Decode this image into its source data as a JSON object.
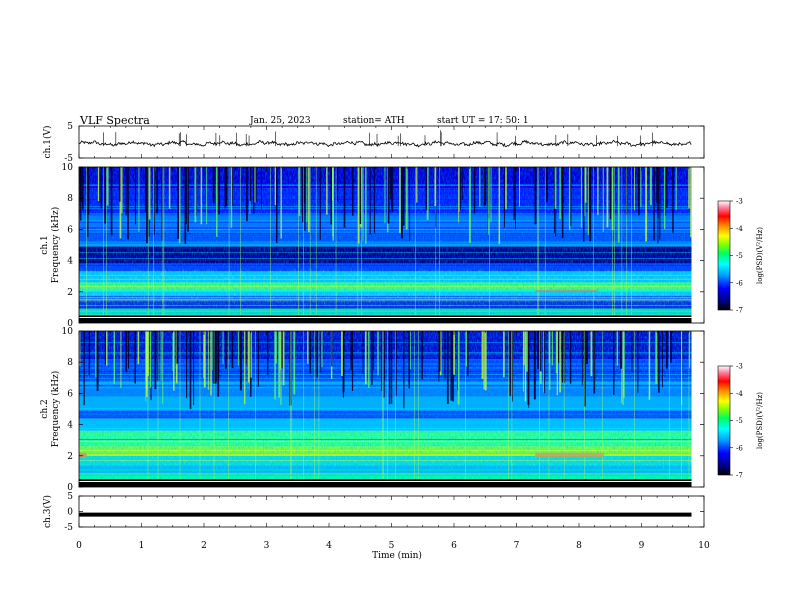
{
  "header": {
    "title": "VLF  Spectra",
    "date": "Jan. 25, 2023",
    "station": "station= ATH",
    "start": "start  UT  =    17: 50: 1"
  },
  "colorbar": {
    "label": "log(PSD)(V²/Hz)",
    "ticks": [
      "-3",
      "-4",
      "-5",
      "-6",
      "-7"
    ]
  },
  "chart_data": [
    {
      "type": "line",
      "ylabel": "ch.1(V)",
      "ylim": [
        -5,
        5
      ],
      "ytick_labels": [
        "5",
        "-5"
      ],
      "mean_value": -0.5,
      "xlim": [
        0,
        10
      ]
    },
    {
      "type": "heatmap",
      "ylabel": "ch.1\nFrequency  (kHz)",
      "ylim": [
        0,
        10
      ],
      "ytick_labels": [
        "0",
        "2",
        "4",
        "6",
        "8",
        "10"
      ],
      "xlim": [
        0,
        10
      ],
      "data_end_min": 9.8,
      "colorscale": [
        "#000000",
        "#000080",
        "#0000ff",
        "#00a0ff",
        "#00ffff",
        "#00ff60",
        "#80ff00",
        "#ffff00",
        "#ff8000",
        "#ff0000",
        "#ff80a0",
        "#ffffff"
      ],
      "zlim": [
        -7,
        -3
      ]
    },
    {
      "type": "heatmap",
      "ylabel": "ch.2\nFrequency  (kHz)",
      "ylim": [
        0,
        10
      ],
      "ytick_labels": [
        "0",
        "2",
        "4",
        "6",
        "8",
        "10"
      ],
      "xlim": [
        0,
        10
      ],
      "data_end_min": 9.8,
      "colorscale": [
        "#000000",
        "#000080",
        "#0000ff",
        "#00a0ff",
        "#00ffff",
        "#00ff60",
        "#80ff00",
        "#ffff00",
        "#ff8000",
        "#ff0000",
        "#ff80a0",
        "#ffffff"
      ],
      "zlim": [
        -7,
        -3
      ]
    },
    {
      "type": "line",
      "ylabel": "ch.3(V)",
      "ylim": [
        -5,
        5
      ],
      "ytick_labels": [
        "5",
        "0",
        "-5"
      ],
      "mean_value": -1,
      "xlim": [
        0,
        10
      ],
      "xlabel": "Time  (min)",
      "xtick_labels": [
        "0",
        "1",
        "2",
        "3",
        "4",
        "5",
        "6",
        "7",
        "8",
        "9",
        "10"
      ]
    }
  ]
}
